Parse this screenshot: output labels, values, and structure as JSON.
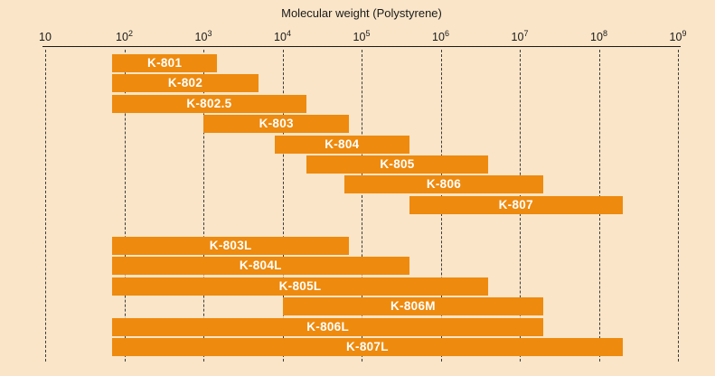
{
  "title": "Molecular weight (Polystyrene)",
  "colors": {
    "background": "#FAE5C8",
    "bar": "#EE8A0E",
    "bar_label": "#FFFFFF",
    "axis": "#1A1A1A",
    "gridline": "#3C3C3C"
  },
  "axis": {
    "scale": "log10",
    "min": 10,
    "max": 1000000000,
    "ticks": [
      {
        "base": "10",
        "exponent": ""
      },
      {
        "base": "10",
        "exponent": "2"
      },
      {
        "base": "10",
        "exponent": "3"
      },
      {
        "base": "10",
        "exponent": "4"
      },
      {
        "base": "10",
        "exponent": "5"
      },
      {
        "base": "10",
        "exponent": "6"
      },
      {
        "base": "10",
        "exponent": "7"
      },
      {
        "base": "10",
        "exponent": "8"
      },
      {
        "base": "10",
        "exponent": "9"
      }
    ]
  },
  "chart_data": {
    "type": "bar",
    "orientation": "horizontal-range",
    "title": "Molecular weight (Polystyrene)",
    "xlabel": "Molecular weight (Polystyrene)",
    "ylabel": "",
    "xscale": "log",
    "xlim": [
      10,
      1000000000
    ],
    "grid": "vertical-dashed-per-decade",
    "legend": "none",
    "series": [
      {
        "name": "K-801",
        "range": [
          70,
          1500
        ],
        "group": 1
      },
      {
        "name": "K-802",
        "range": [
          70,
          5000
        ],
        "group": 1
      },
      {
        "name": "K-802.5",
        "range": [
          70,
          20000
        ],
        "group": 1
      },
      {
        "name": "K-803",
        "range": [
          1000,
          70000
        ],
        "group": 1
      },
      {
        "name": "K-804",
        "range": [
          8000,
          400000
        ],
        "group": 1
      },
      {
        "name": "K-805",
        "range": [
          20000,
          4000000
        ],
        "group": 1
      },
      {
        "name": "K-806",
        "range": [
          60000,
          20000000
        ],
        "group": 1
      },
      {
        "name": "K-807",
        "range": [
          400000,
          200000000
        ],
        "group": 1
      },
      {
        "name": "K-803L",
        "range": [
          70,
          70000
        ],
        "group": 2
      },
      {
        "name": "K-804L",
        "range": [
          70,
          400000
        ],
        "group": 2
      },
      {
        "name": "K-805L",
        "range": [
          70,
          4000000
        ],
        "group": 2
      },
      {
        "name": "K-806M",
        "range": [
          10000,
          20000000
        ],
        "group": 2
      },
      {
        "name": "K-806L",
        "range": [
          70,
          20000000
        ],
        "group": 2
      },
      {
        "name": "K-807L",
        "range": [
          70,
          200000000
        ],
        "group": 2
      }
    ]
  }
}
